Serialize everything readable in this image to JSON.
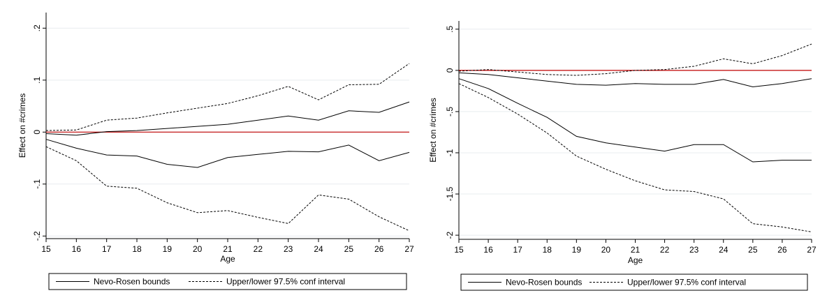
{
  "colors": {
    "bounds": "#000000",
    "ci": "#000000",
    "zero_line": "#c00000",
    "grid": "#e8ecef",
    "frame": "#000000"
  },
  "chart_data": [
    {
      "type": "line",
      "xlabel": "Age",
      "ylabel": "Effect on #crimes",
      "x": [
        15,
        16,
        17,
        18,
        19,
        20,
        21,
        22,
        23,
        24,
        25,
        26,
        27
      ],
      "xticks": [
        "15",
        "16",
        "17",
        "18",
        "19",
        "20",
        "21",
        "22",
        "23",
        "24",
        "25",
        "26",
        "27"
      ],
      "yticks": [
        {
          "value": -0.2,
          "label": "-.2"
        },
        {
          "value": -0.1,
          "label": "-.1"
        },
        {
          "value": 0,
          "label": "0"
        },
        {
          "value": 0.1,
          "label": ".1"
        },
        {
          "value": 0.2,
          "label": ".2"
        }
      ],
      "xlim": [
        15,
        27
      ],
      "ylim": [
        -0.205,
        0.23
      ],
      "grid": true,
      "reference_line": 0,
      "legend": {
        "placement": "bottom",
        "entries": [
          "Nevo-Rosen bounds",
          "Upper/lower 97.5% conf interval"
        ]
      },
      "series": [
        {
          "role": "bound",
          "style": "solid",
          "values": [
            -0.003,
            -0.006,
            0.001,
            0.003,
            0.007,
            0.011,
            0.015,
            0.023,
            0.031,
            0.023,
            0.041,
            0.038,
            0.058
          ]
        },
        {
          "role": "bound",
          "style": "solid",
          "values": [
            -0.014,
            -0.031,
            -0.044,
            -0.046,
            -0.062,
            -0.068,
            -0.049,
            -0.043,
            -0.037,
            -0.038,
            -0.025,
            -0.055,
            -0.039
          ]
        },
        {
          "role": "ci",
          "style": "dashed",
          "values": [
            0.003,
            0.004,
            0.023,
            0.027,
            0.037,
            0.046,
            0.055,
            0.07,
            0.088,
            0.062,
            0.091,
            0.092,
            0.132
          ]
        },
        {
          "role": "ci",
          "style": "dashed",
          "values": [
            -0.028,
            -0.055,
            -0.104,
            -0.108,
            -0.136,
            -0.155,
            -0.151,
            -0.164,
            -0.176,
            -0.121,
            -0.129,
            -0.163,
            -0.19
          ]
        }
      ]
    },
    {
      "type": "line",
      "xlabel": "Age",
      "ylabel": "Effect on #crimes",
      "x": [
        15,
        16,
        17,
        18,
        19,
        20,
        21,
        22,
        23,
        24,
        25,
        26,
        27
      ],
      "xticks": [
        "15",
        "16",
        "17",
        "18",
        "19",
        "20",
        "21",
        "22",
        "23",
        "24",
        "25",
        "26",
        "27"
      ],
      "yticks": [
        {
          "value": -2,
          "label": "-2"
        },
        {
          "value": -1.5,
          "label": "-1.5"
        },
        {
          "value": -1,
          "label": "-1"
        },
        {
          "value": -0.5,
          "label": "-.5"
        },
        {
          "value": 0,
          "label": "0"
        },
        {
          "value": 0.5,
          "label": ".5"
        }
      ],
      "xlim": [
        15,
        27
      ],
      "ylim": [
        -2.05,
        0.6
      ],
      "grid": true,
      "reference_line": 0,
      "legend": {
        "placement": "bottom",
        "entries": [
          "Nevo-Rosen bounds",
          "Upper/lower 97.5% conf interval"
        ]
      },
      "series": [
        {
          "role": "bound",
          "style": "solid",
          "values": [
            -0.03,
            -0.05,
            -0.09,
            -0.13,
            -0.17,
            -0.18,
            -0.16,
            -0.17,
            -0.17,
            -0.11,
            -0.2,
            -0.16,
            -0.1
          ]
        },
        {
          "role": "bound",
          "style": "solid",
          "values": [
            -0.1,
            -0.22,
            -0.4,
            -0.57,
            -0.8,
            -0.88,
            -0.93,
            -0.98,
            -0.9,
            -0.9,
            -1.11,
            -1.09,
            -1.09
          ]
        },
        {
          "role": "ci",
          "style": "dashed",
          "values": [
            -0.01,
            0.01,
            -0.02,
            -0.05,
            -0.06,
            -0.04,
            0.0,
            0.01,
            0.05,
            0.14,
            0.08,
            0.18,
            0.32
          ]
        },
        {
          "role": "ci",
          "style": "dashed",
          "values": [
            -0.16,
            -0.33,
            -0.53,
            -0.76,
            -1.04,
            -1.2,
            -1.34,
            -1.45,
            -1.47,
            -1.56,
            -1.86,
            -1.9,
            -1.96
          ]
        }
      ]
    }
  ]
}
